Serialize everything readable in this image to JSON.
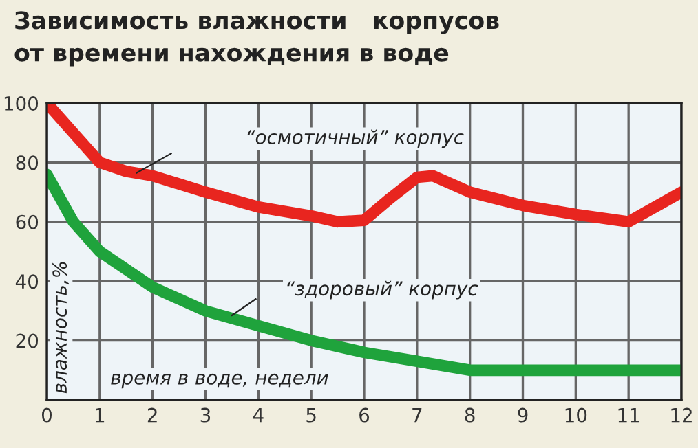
{
  "chart_data": {
    "type": "line",
    "title": "Зависимость влажности   корпусов\nот времени нахождения в воде",
    "xlabel": "время в воде, недели",
    "ylabel": "влажность,%",
    "xlim": [
      0,
      12
    ],
    "xticks": [
      0,
      1,
      2,
      3,
      4,
      5,
      6,
      7,
      8,
      9,
      10,
      11,
      12
    ],
    "ylim": [
      0,
      100
    ],
    "yticks": [
      {
        "value": 0,
        "label": null
      },
      20,
      40,
      60,
      80,
      100
    ],
    "grid": true,
    "legend": false,
    "series": [
      {
        "name": "“осмотичный” корпус",
        "color": "#e8251f",
        "x": [
          0,
          0.5,
          1,
          1.5,
          2,
          3,
          4,
          5,
          5.5,
          6,
          6.5,
          7,
          7.3,
          8,
          9,
          10,
          11,
          12
        ],
        "values": [
          100,
          90,
          80,
          77,
          75.5,
          70,
          65,
          62,
          60,
          60.5,
          68,
          75,
          75.5,
          70,
          65.5,
          62.5,
          60,
          70
        ]
      },
      {
        "name": "“здоровый” корпус",
        "color": "#1fa33c",
        "x": [
          0,
          0.5,
          1,
          2,
          3,
          4,
          5,
          6,
          7,
          8,
          9,
          10,
          11,
          12
        ],
        "values": [
          76,
          60,
          50,
          38,
          30,
          25,
          20,
          16,
          13,
          10,
          10,
          10,
          10,
          10
        ]
      }
    ]
  }
}
